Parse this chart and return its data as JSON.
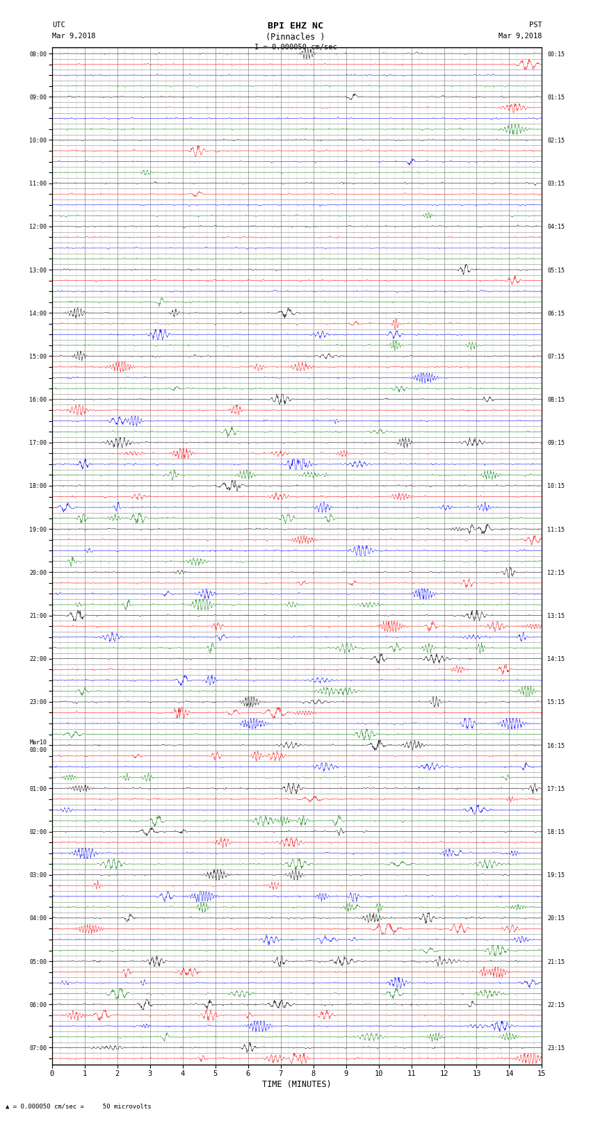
{
  "title_line1": "BPI EHZ NC",
  "title_line2": "(Pinnacles )",
  "scale_bar_text": "I = 0.000050 cm/sec",
  "left_label_top": "UTC",
  "left_label_date": "Mar 9,2018",
  "right_label_top": "PST",
  "right_label_date": "Mar 9,2018",
  "bottom_label": "TIME (MINUTES)",
  "bottom_note": "= 0.000050 cm/sec =     50 microvolts",
  "xlabel_ticks": [
    0,
    1,
    2,
    3,
    4,
    5,
    6,
    7,
    8,
    9,
    10,
    11,
    12,
    13,
    14,
    15
  ],
  "xlim": [
    0,
    15
  ],
  "trace_colors_cycle": [
    "black",
    "red",
    "blue",
    "green"
  ],
  "utc_labels": [
    "08:00",
    "",
    "",
    "",
    "09:00",
    "",
    "",
    "",
    "10:00",
    "",
    "",
    "",
    "11:00",
    "",
    "",
    "",
    "12:00",
    "",
    "",
    "",
    "13:00",
    "",
    "",
    "",
    "14:00",
    "",
    "",
    "",
    "15:00",
    "",
    "",
    "",
    "16:00",
    "",
    "",
    "",
    "17:00",
    "",
    "",
    "",
    "18:00",
    "",
    "",
    "",
    "19:00",
    "",
    "",
    "",
    "20:00",
    "",
    "",
    "",
    "21:00",
    "",
    "",
    "",
    "22:00",
    "",
    "",
    "",
    "23:00",
    "",
    "",
    "",
    "Mar10\n00:00",
    "",
    "",
    "",
    "01:00",
    "",
    "",
    "",
    "02:00",
    "",
    "",
    "",
    "03:00",
    "",
    "",
    "",
    "04:00",
    "",
    "",
    "",
    "05:00",
    "",
    "",
    "",
    "06:00",
    "",
    "",
    "",
    "07:00",
    ""
  ],
  "pst_labels": [
    "00:15",
    "",
    "",
    "",
    "01:15",
    "",
    "",
    "",
    "02:15",
    "",
    "",
    "",
    "03:15",
    "",
    "",
    "",
    "04:15",
    "",
    "",
    "",
    "05:15",
    "",
    "",
    "",
    "06:15",
    "",
    "",
    "",
    "07:15",
    "",
    "",
    "",
    "08:15",
    "",
    "",
    "",
    "09:15",
    "",
    "",
    "",
    "10:15",
    "",
    "",
    "",
    "11:15",
    "",
    "",
    "",
    "12:15",
    "",
    "",
    "",
    "13:15",
    "",
    "",
    "",
    "14:15",
    "",
    "",
    "",
    "15:15",
    "",
    "",
    "",
    "16:15",
    "",
    "",
    "",
    "17:15",
    "",
    "",
    "",
    "18:15",
    "",
    "",
    "",
    "19:15",
    "",
    "",
    "",
    "20:15",
    "",
    "",
    "",
    "21:15",
    "",
    "",
    "",
    "22:15",
    "",
    "",
    "",
    "23:15",
    ""
  ],
  "fig_width": 8.5,
  "fig_height": 16.13,
  "bg_color": "white",
  "grid_color": "#888888",
  "minor_grid_color": "#cccccc"
}
